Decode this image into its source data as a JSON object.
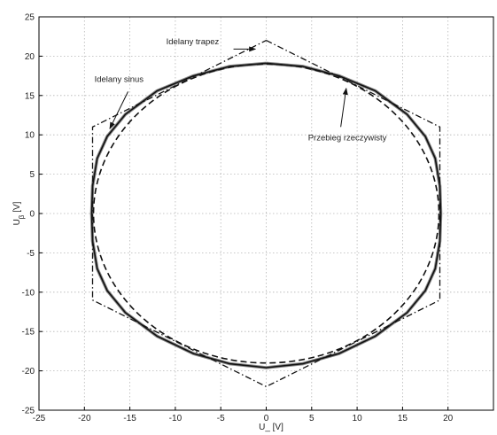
{
  "chart_data": {
    "type": "line",
    "title": "",
    "xlabel": "U_ [V]",
    "ylabel": "U",
    "ylabel_subscript": "β",
    "ylabel_unit": " [V]",
    "xlim": [
      -25,
      25
    ],
    "ylim": [
      -25,
      25
    ],
    "xticks": [
      -25,
      -20,
      -15,
      -10,
      -5,
      0,
      5,
      10,
      15,
      20
    ],
    "yticks": [
      -25,
      -20,
      -15,
      -10,
      -5,
      0,
      5,
      10,
      15,
      20,
      25
    ],
    "grid": true,
    "legend": "none",
    "series": [
      {
        "style": "dashdot",
        "points": [
          [
            0,
            22
          ],
          [
            19.1,
            11
          ],
          [
            19.1,
            -11
          ],
          [
            0,
            -22
          ],
          [
            -19.1,
            -11
          ],
          [
            -19.1,
            11
          ],
          [
            0,
            22
          ]
        ]
      },
      {
        "style": "dashed",
        "center": [
          0,
          0
        ],
        "radius": 19
      },
      {
        "style": "solid-thick",
        "points": [
          [
            0,
            19.1
          ],
          [
            4,
            18.7
          ],
          [
            8,
            17.5
          ],
          [
            12,
            15.6
          ],
          [
            15.5,
            12.6
          ],
          [
            17.5,
            9.8
          ],
          [
            18.6,
            7
          ],
          [
            19.1,
            3.5
          ],
          [
            19.2,
            0
          ],
          [
            19.1,
            -3.5
          ],
          [
            18.6,
            -7
          ],
          [
            17.5,
            -9.8
          ],
          [
            15.5,
            -12.6
          ],
          [
            12,
            -15.6
          ],
          [
            8,
            -17.8
          ],
          [
            4,
            -19.1
          ],
          [
            0,
            -19.6
          ],
          [
            -4,
            -19.1
          ],
          [
            -8,
            -17.8
          ],
          [
            -12,
            -15.6
          ],
          [
            -15.5,
            -12.6
          ],
          [
            -17.5,
            -9.8
          ],
          [
            -18.6,
            -7
          ],
          [
            -19.1,
            -3.5
          ],
          [
            -19.2,
            0
          ],
          [
            -19.1,
            3.5
          ],
          [
            -18.6,
            7
          ],
          [
            -17.5,
            9.8
          ],
          [
            -15.5,
            12.6
          ],
          [
            -12,
            15.6
          ],
          [
            -8,
            17.5
          ],
          [
            -4,
            18.7
          ],
          [
            0,
            19.1
          ]
        ]
      }
    ],
    "annotations": [
      {
        "text": "Idelany trapez",
        "text_at": [
          -11,
          21.5
        ],
        "arrow_from": [
          -3.6,
          20.9
        ],
        "arrow_to": [
          -1.2,
          20.9
        ]
      },
      {
        "text": "Idelany sinus",
        "text_at": [
          -18.9,
          16.7
        ],
        "arrow_from": [
          -15.2,
          15.5
        ],
        "arrow_to": [
          -17.2,
          10.8
        ]
      },
      {
        "text": "Przebieg rzeczywisty",
        "text_at": [
          4.6,
          9.3
        ],
        "arrow_from": [
          8.2,
          11.0
        ],
        "arrow_to": [
          8.8,
          15.9
        ]
      }
    ]
  }
}
